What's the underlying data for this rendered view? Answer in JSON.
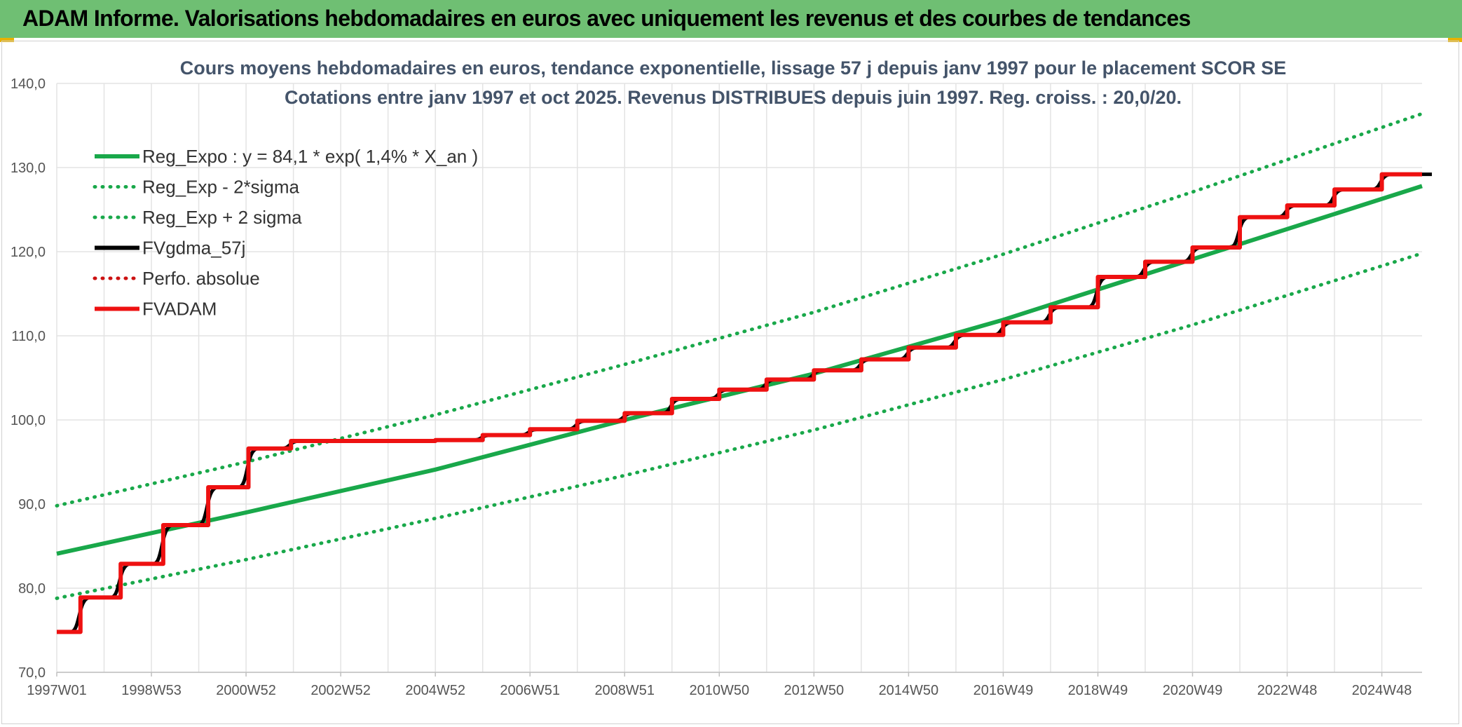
{
  "header": {
    "title": "ADAM Informe. Valorisations hebdomadaires en euros avec uniquement les revenus et des courbes de tendances"
  },
  "colors": {
    "banner": "#6fbf73",
    "reg": "#19a84a",
    "fv": "#000000",
    "adam": "#ee1111",
    "perfo": "#cc1111",
    "grid": "#e3e3e3"
  },
  "chart_data": {
    "type": "line",
    "title": "Cours moyens hebdomadaires en euros, tendance exponentielle, lissage 57 j depuis janv 1997 pour le placement SCOR SE",
    "subtitle": "Cotations entre janv 1997 et oct 2025. Revenus DISTRIBUES depuis juin 1997. Reg. croiss. : 20,0/20.",
    "xlabel": "",
    "ylabel": "",
    "ylim": [
      70,
      140
    ],
    "xlim": [
      1997.0,
      2025.85
    ],
    "y_ticks": [
      "70,0",
      "80,0",
      "90,0",
      "100,0",
      "110,0",
      "120,0",
      "130,0",
      "140,0"
    ],
    "x_ticks": [
      {
        "label": "1997W01",
        "x": 1997.0
      },
      {
        "label": "1998W53",
        "x": 1999.0
      },
      {
        "label": "2000W52",
        "x": 2001.0
      },
      {
        "label": "2002W52",
        "x": 2003.0
      },
      {
        "label": "2004W52",
        "x": 2005.0
      },
      {
        "label": "2006W51",
        "x": 2007.0
      },
      {
        "label": "2008W51",
        "x": 2009.0
      },
      {
        "label": "2010W50",
        "x": 2011.0
      },
      {
        "label": "2012W50",
        "x": 2013.0
      },
      {
        "label": "2014W50",
        "x": 2015.0
      },
      {
        "label": "2016W49",
        "x": 2017.0
      },
      {
        "label": "2018W49",
        "x": 2019.0
      },
      {
        "label": "2020W49",
        "x": 2021.0
      },
      {
        "label": "2022W48",
        "x": 2023.0
      },
      {
        "label": "2024W48",
        "x": 2025.0
      }
    ],
    "grid": true,
    "legend_position": "top-left",
    "series": [
      {
        "name": "Reg_Expo : y = 84,1 * exp( 1,4% *  X_an )",
        "style": "solid",
        "color": "#19a84a",
        "x": [
          1997.0,
          2001.0,
          2005.0,
          2009.0,
          2013.0,
          2017.0,
          2021.0,
          2025.85
        ],
        "y": [
          84.1,
          89.0,
          94.1,
          100.0,
          105.5,
          111.9,
          119.1,
          127.8
        ]
      },
      {
        "name": "Reg_Exp - 2*sigma",
        "style": "dotted",
        "color": "#19a84a",
        "x": [
          1997.0,
          2001.0,
          2005.0,
          2009.0,
          2013.0,
          2017.0,
          2021.0,
          2025.85
        ],
        "y": [
          78.8,
          83.4,
          88.3,
          93.4,
          98.8,
          104.8,
          111.3,
          119.8
        ]
      },
      {
        "name": "Reg_Exp + 2 sigma",
        "style": "dotted",
        "color": "#19a84a",
        "x": [
          1997.0,
          2001.0,
          2005.0,
          2009.0,
          2013.0,
          2017.0,
          2021.0,
          2025.85
        ],
        "y": [
          89.8,
          95.0,
          100.6,
          106.6,
          112.8,
          119.7,
          127.1,
          136.4
        ]
      },
      {
        "name": "FVgdma_57j",
        "style": "solid",
        "color": "#000000",
        "x": [
          1997.0,
          1997.5,
          1998.35,
          1999.25,
          2000.2,
          2001.05,
          2001.95,
          2005.0,
          2006.0,
          2007.0,
          2008.0,
          2009.0,
          2010.0,
          2011.0,
          2012.0,
          2013.0,
          2014.0,
          2015.0,
          2016.0,
          2017.0,
          2018.0,
          2019.0,
          2020.0,
          2021.0,
          2022.0,
          2023.0,
          2024.0,
          2025.0,
          2025.85
        ],
        "y": [
          74.8,
          78.9,
          82.9,
          87.5,
          92.0,
          96.6,
          97.5,
          97.6,
          98.2,
          98.9,
          99.9,
          100.8,
          102.5,
          103.6,
          104.8,
          105.9,
          107.2,
          108.6,
          110.1,
          111.6,
          113.4,
          117.0,
          118.8,
          120.5,
          124.1,
          125.5,
          127.4,
          129.2,
          129.2
        ]
      },
      {
        "name": "Perfo. absolue",
        "style": "dotted",
        "color": "#cc1111",
        "x": [],
        "y": []
      },
      {
        "name": "FVADAM",
        "style": "step",
        "color": "#ee1111",
        "x": [
          1997.0,
          1997.5,
          1998.35,
          1999.25,
          2000.2,
          2001.05,
          2001.95,
          2005.0,
          2006.0,
          2007.0,
          2008.0,
          2009.0,
          2010.0,
          2011.0,
          2012.0,
          2013.0,
          2014.0,
          2015.0,
          2016.0,
          2017.0,
          2018.0,
          2019.0,
          2020.0,
          2021.0,
          2022.0,
          2023.0,
          2024.0,
          2025.0,
          2025.85
        ],
        "y": [
          74.8,
          78.9,
          82.9,
          87.5,
          92.0,
          96.6,
          97.5,
          97.6,
          98.2,
          98.9,
          99.9,
          100.8,
          102.5,
          103.6,
          104.8,
          105.9,
          107.2,
          108.6,
          110.1,
          111.6,
          113.4,
          117.0,
          118.8,
          120.5,
          124.1,
          125.5,
          127.4,
          129.2,
          129.2
        ]
      }
    ]
  }
}
